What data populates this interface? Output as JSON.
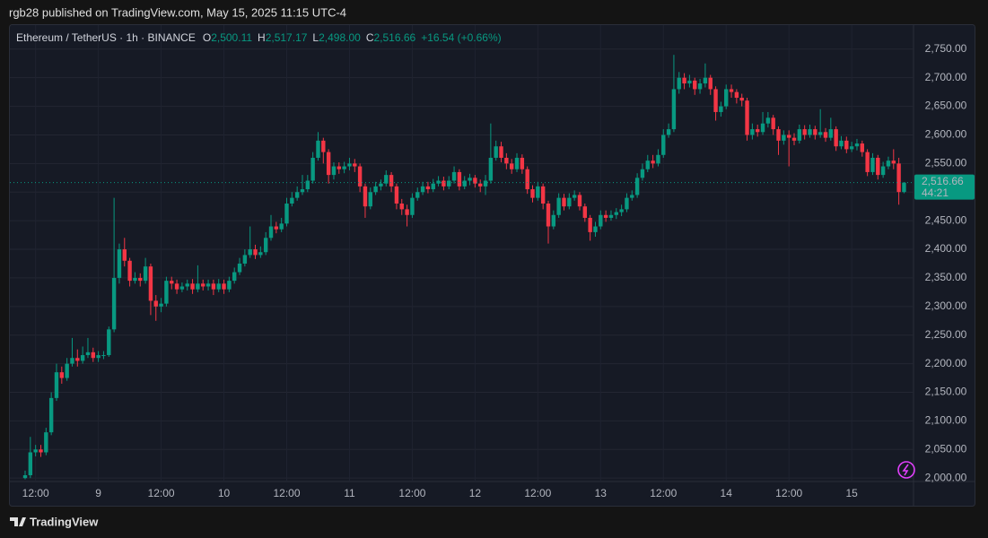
{
  "published": "rgb28 published on TradingView.com, May 15, 2025 11:15 UTC-4",
  "brand": "TradingView",
  "chart_data": {
    "type": "candlestick",
    "title": "Ethereum / TetherUS · 1h · BINANCE",
    "legend": [
      {
        "key": "O",
        "label": "2,500.11"
      },
      {
        "key": "H",
        "label": "2,517.17"
      },
      {
        "key": "L",
        "label": "2,498.00"
      },
      {
        "key": "C",
        "label": "2,516.66"
      }
    ],
    "change": "+16.54 (+0.66%)",
    "categories": [
      null,
      null,
      "12:00",
      null,
      null,
      null,
      null,
      null,
      null,
      null,
      null,
      null,
      null,
      null,
      "9",
      null,
      null,
      null,
      null,
      null,
      null,
      null,
      null,
      null,
      null,
      null,
      "12:00",
      null,
      null,
      null,
      null,
      null,
      null,
      null,
      null,
      null,
      null,
      null,
      "10",
      null,
      null,
      null,
      null,
      null,
      null,
      null,
      null,
      null,
      null,
      null,
      "12:00",
      null,
      null,
      null,
      null,
      null,
      null,
      null,
      null,
      null,
      null,
      null,
      "11",
      null,
      null,
      null,
      null,
      null,
      null,
      null,
      null,
      null,
      null,
      null,
      "12:00",
      null,
      null,
      null,
      null,
      null,
      null,
      null,
      null,
      null,
      null,
      null,
      "12",
      null,
      null,
      null,
      null,
      null,
      null,
      null,
      null,
      null,
      null,
      null,
      "12:00",
      null,
      null,
      null,
      null,
      null,
      null,
      null,
      null,
      null,
      null,
      null,
      "13",
      null,
      null,
      null,
      null,
      null,
      null,
      null,
      null,
      null,
      null,
      null,
      "12:00",
      null,
      null,
      null,
      null,
      null,
      null,
      null,
      null,
      null,
      null,
      null,
      "14",
      null,
      null,
      null,
      null,
      null,
      null,
      null,
      null,
      null,
      null,
      null,
      "12:00",
      null,
      null,
      null,
      null,
      null,
      null,
      null,
      null,
      null,
      null,
      null,
      "15",
      null,
      null,
      null,
      null,
      null,
      null,
      null,
      null,
      null,
      null
    ],
    "open": [
      2000,
      2005,
      2045,
      2050,
      2045,
      2080,
      2140,
      2185,
      2175,
      2200,
      2210,
      2205,
      2215,
      2220,
      2210,
      2215,
      2215,
      2260,
      2350,
      2400,
      2380,
      2345,
      2350,
      2345,
      2370,
      2310,
      2300,
      2305,
      2345,
      2340,
      2330,
      2335,
      2340,
      2330,
      2340,
      2335,
      2340,
      2330,
      2340,
      2330,
      2345,
      2360,
      2375,
      2390,
      2400,
      2390,
      2395,
      2420,
      2440,
      2435,
      2445,
      2480,
      2490,
      2500,
      2505,
      2520,
      2560,
      2590,
      2570,
      2530,
      2545,
      2540,
      2545,
      2550,
      2545,
      2510,
      2475,
      2500,
      2510,
      2515,
      2530,
      2510,
      2480,
      2470,
      2460,
      2490,
      2500,
      2510,
      2505,
      2515,
      2520,
      2510,
      2520,
      2535,
      2510,
      2520,
      2525,
      2515,
      2510,
      2520,
      2560,
      2580,
      2560,
      2550,
      2540,
      2560,
      2540,
      2505,
      2490,
      2510,
      2480,
      2440,
      2460,
      2490,
      2475,
      2490,
      2495,
      2475,
      2455,
      2430,
      2440,
      2460,
      2455,
      2460,
      2465,
      2470,
      2490,
      2495,
      2525,
      2540,
      2555,
      2550,
      2565,
      2600,
      2610,
      2680,
      2700,
      2690,
      2695,
      2680,
      2690,
      2700,
      2680,
      2640,
      2650,
      2680,
      2675,
      2665,
      2660,
      2600,
      2610,
      2605,
      2620,
      2630,
      2610,
      2590,
      2600,
      2595,
      2590,
      2610,
      2600,
      2610,
      2600,
      2605,
      2595,
      2610,
      2580,
      2590,
      2575,
      2580,
      2585,
      2570,
      2535,
      2560,
      2530,
      2545,
      2555,
      2550,
      2500.11
    ],
    "high": [
      2013,
      2072,
      2058,
      2058,
      2088,
      2150,
      2200,
      2195,
      2210,
      2245,
      2225,
      2230,
      2245,
      2228,
      2222,
      2222,
      2265,
      2490,
      2410,
      2420,
      2385,
      2360,
      2358,
      2385,
      2375,
      2320,
      2315,
      2352,
      2352,
      2347,
      2342,
      2347,
      2348,
      2372,
      2347,
      2347,
      2347,
      2348,
      2347,
      2352,
      2368,
      2385,
      2400,
      2440,
      2408,
      2405,
      2430,
      2460,
      2448,
      2455,
      2490,
      2500,
      2510,
      2530,
      2530,
      2570,
      2605,
      2595,
      2575,
      2552,
      2552,
      2553,
      2560,
      2558,
      2550,
      2515,
      2508,
      2518,
      2522,
      2538,
      2535,
      2515,
      2488,
      2478,
      2498,
      2508,
      2518,
      2518,
      2523,
      2528,
      2527,
      2528,
      2545,
      2540,
      2528,
      2532,
      2530,
      2522,
      2530,
      2620,
      2590,
      2588,
      2568,
      2558,
      2568,
      2566,
      2545,
      2512,
      2518,
      2515,
      2485,
      2468,
      2498,
      2497,
      2498,
      2503,
      2500,
      2480,
      2460,
      2448,
      2468,
      2468,
      2468,
      2472,
      2478,
      2498,
      2503,
      2533,
      2550,
      2565,
      2565,
      2575,
      2610,
      2620,
      2740,
      2710,
      2708,
      2705,
      2700,
      2698,
      2725,
      2705,
      2685,
      2658,
      2688,
      2688,
      2680,
      2672,
      2665,
      2620,
      2618,
      2640,
      2640,
      2635,
      2615,
      2608,
      2608,
      2603,
      2618,
      2617,
      2618,
      2616,
      2645,
      2612,
      2630,
      2615,
      2598,
      2597,
      2588,
      2593,
      2590,
      2575,
      2568,
      2565,
      2553,
      2562,
      2575,
      2560,
      2517.17
    ],
    "low": [
      1998,
      2000,
      2038,
      2037,
      2040,
      2075,
      2135,
      2165,
      2170,
      2195,
      2195,
      2200,
      2210,
      2203,
      2203,
      2208,
      2212,
      2255,
      2340,
      2370,
      2335,
      2340,
      2335,
      2340,
      2285,
      2275,
      2290,
      2300,
      2330,
      2322,
      2325,
      2328,
      2322,
      2325,
      2328,
      2328,
      2320,
      2325,
      2322,
      2325,
      2340,
      2355,
      2370,
      2385,
      2383,
      2385,
      2390,
      2415,
      2428,
      2430,
      2440,
      2475,
      2485,
      2495,
      2500,
      2515,
      2555,
      2550,
      2515,
      2522,
      2532,
      2533,
      2538,
      2535,
      2500,
      2455,
      2470,
      2495,
      2503,
      2510,
      2500,
      2470,
      2460,
      2440,
      2455,
      2485,
      2495,
      2498,
      2500,
      2510,
      2503,
      2505,
      2515,
      2503,
      2505,
      2512,
      2508,
      2500,
      2495,
      2515,
      2555,
      2552,
      2540,
      2532,
      2535,
      2532,
      2497,
      2482,
      2485,
      2470,
      2410,
      2435,
      2455,
      2468,
      2470,
      2485,
      2468,
      2448,
      2415,
      2422,
      2435,
      2448,
      2450,
      2453,
      2458,
      2465,
      2485,
      2490,
      2520,
      2535,
      2542,
      2545,
      2560,
      2595,
      2605,
      2672,
      2680,
      2683,
      2670,
      2672,
      2683,
      2670,
      2625,
      2632,
      2645,
      2665,
      2655,
      2650,
      2590,
      2592,
      2597,
      2600,
      2613,
      2600,
      2565,
      2583,
      2545,
      2582,
      2585,
      2592,
      2595,
      2592,
      2595,
      2588,
      2590,
      2572,
      2575,
      2568,
      2570,
      2573,
      2562,
      2528,
      2530,
      2522,
      2525,
      2540,
      2540,
      2478,
      2498
    ],
    "close": [
      2005,
      2045,
      2050,
      2045,
      2080,
      2140,
      2185,
      2175,
      2200,
      2210,
      2205,
      2215,
      2220,
      2210,
      2215,
      2215,
      2260,
      2350,
      2400,
      2380,
      2345,
      2350,
      2345,
      2370,
      2310,
      2300,
      2305,
      2345,
      2340,
      2330,
      2335,
      2340,
      2330,
      2340,
      2335,
      2340,
      2330,
      2340,
      2330,
      2345,
      2360,
      2375,
      2390,
      2400,
      2390,
      2395,
      2420,
      2440,
      2435,
      2445,
      2480,
      2490,
      2500,
      2505,
      2520,
      2560,
      2590,
      2570,
      2530,
      2545,
      2540,
      2545,
      2550,
      2545,
      2510,
      2475,
      2500,
      2510,
      2515,
      2530,
      2510,
      2480,
      2470,
      2460,
      2490,
      2500,
      2510,
      2505,
      2515,
      2520,
      2510,
      2520,
      2535,
      2510,
      2520,
      2525,
      2515,
      2510,
      2520,
      2560,
      2580,
      2560,
      2550,
      2540,
      2560,
      2540,
      2505,
      2490,
      2510,
      2480,
      2440,
      2460,
      2490,
      2475,
      2490,
      2495,
      2475,
      2455,
      2430,
      2440,
      2460,
      2455,
      2460,
      2465,
      2470,
      2490,
      2495,
      2525,
      2540,
      2555,
      2550,
      2565,
      2600,
      2610,
      2680,
      2700,
      2690,
      2695,
      2680,
      2690,
      2700,
      2680,
      2640,
      2650,
      2680,
      2675,
      2665,
      2660,
      2600,
      2610,
      2605,
      2620,
      2630,
      2610,
      2590,
      2600,
      2595,
      2590,
      2610,
      2600,
      2610,
      2600,
      2605,
      2595,
      2610,
      2580,
      2590,
      2575,
      2580,
      2585,
      2570,
      2535,
      2560,
      2530,
      2545,
      2555,
      2550,
      2500.11,
      2516.66
    ],
    "up_color": "#089981",
    "down_color": "#f23645",
    "ylim": [
      1994,
      2792
    ],
    "yticks": [
      {
        "value": 2000,
        "label": "2,000.00"
      },
      {
        "value": 2050,
        "label": "2,050.00"
      },
      {
        "value": 2100,
        "label": "2,100.00"
      },
      {
        "value": 2150,
        "label": "2,150.00"
      },
      {
        "value": 2200,
        "label": "2,200.00"
      },
      {
        "value": 2250,
        "label": "2,250.00"
      },
      {
        "value": 2300,
        "label": "2,300.00"
      },
      {
        "value": 2350,
        "label": "2,350.00"
      },
      {
        "value": 2400,
        "label": "2,400.00"
      },
      {
        "value": 2450,
        "label": "2,450.00"
      },
      {
        "value": 2500,
        "label": "2,500.00"
      },
      {
        "value": 2550,
        "label": "2,550.00"
      },
      {
        "value": 2600,
        "label": "2,600.00"
      },
      {
        "value": 2650,
        "label": "2,650.00"
      },
      {
        "value": 2700,
        "label": "2,700.00"
      },
      {
        "value": 2750,
        "label": "2,750.00"
      }
    ],
    "grid": true,
    "last_price": {
      "value": 2516.66,
      "label": "2,516.66"
    },
    "countdown": "44:21"
  }
}
